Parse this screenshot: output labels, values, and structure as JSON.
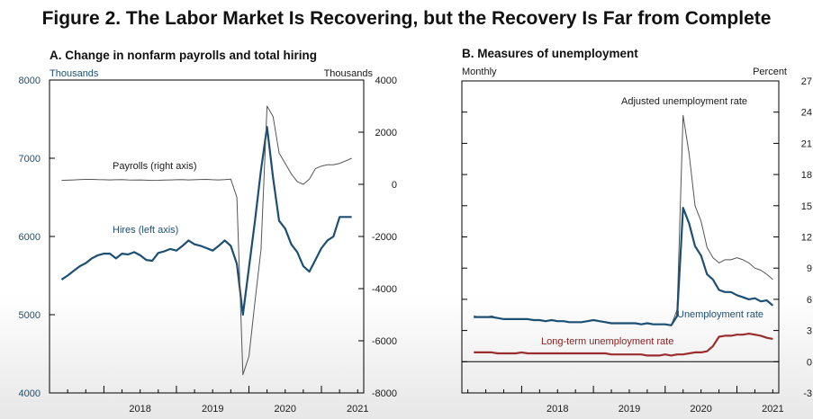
{
  "figure_title": "Figure 2. The Labor Market Is Recovering, but the Recovery Is Far from Complete",
  "colors": {
    "blue": "#1d4f73",
    "red": "#9b2d2d",
    "gray": "#555555",
    "black": "#000000"
  },
  "chart_data": [
    {
      "type": "line",
      "panel_title": "A. Change in nonfarm payrolls and total hiring",
      "left_unit": "Thousands",
      "right_unit": "Thousands",
      "year_labels": [
        "2018",
        "2019",
        "2020",
        "2021"
      ],
      "left_axis": {
        "ylim": [
          4000,
          8000
        ],
        "ticks": [
          "4000",
          "5000",
          "6000",
          "7000",
          "8000"
        ]
      },
      "right_axis": {
        "ylim": [
          -8000,
          4000
        ],
        "ticks": [
          "-8000",
          "-6000",
          "-4000",
          "-2000",
          "0",
          "2000",
          "4000"
        ]
      },
      "x_start": "2017-04",
      "x_end": "2021-08",
      "series": [
        {
          "name": "Hires (left axis)",
          "axis": "left",
          "color": "#1d4f73",
          "x": [
            "2017-06",
            "2017-07",
            "2017-08",
            "2017-09",
            "2017-10",
            "2017-11",
            "2017-12",
            "2018-01",
            "2018-02",
            "2018-03",
            "2018-04",
            "2018-05",
            "2018-06",
            "2018-07",
            "2018-08",
            "2018-09",
            "2018-10",
            "2018-11",
            "2018-12",
            "2019-01",
            "2019-02",
            "2019-03",
            "2019-04",
            "2019-05",
            "2019-06",
            "2019-07",
            "2019-08",
            "2019-09",
            "2019-10",
            "2019-11",
            "2019-12",
            "2020-01",
            "2020-02",
            "2020-03",
            "2020-04",
            "2020-05",
            "2020-06",
            "2020-07",
            "2020-08",
            "2020-09",
            "2020-10",
            "2020-11",
            "2020-12",
            "2021-01",
            "2021-02",
            "2021-03",
            "2021-04",
            "2021-05",
            "2021-06"
          ],
          "values": [
            5450,
            5500,
            5560,
            5620,
            5660,
            5720,
            5760,
            5780,
            5780,
            5720,
            5780,
            5770,
            5800,
            5760,
            5700,
            5690,
            5790,
            5810,
            5840,
            5820,
            5880,
            5950,
            5900,
            5880,
            5850,
            5820,
            5880,
            5950,
            5880,
            5650,
            5000,
            5600,
            6200,
            6850,
            7400,
            6750,
            6200,
            6100,
            5900,
            5800,
            5620,
            5550,
            5700,
            5850,
            5950,
            6000,
            6250,
            6250,
            6250
          ]
        },
        {
          "name": "Payrolls (right axis)",
          "axis": "right",
          "color": "#555555",
          "x": [
            "2017-06",
            "2017-07",
            "2017-08",
            "2017-09",
            "2017-10",
            "2017-11",
            "2017-12",
            "2018-01",
            "2018-02",
            "2018-03",
            "2018-04",
            "2018-05",
            "2018-06",
            "2018-07",
            "2018-08",
            "2018-09",
            "2018-10",
            "2018-11",
            "2018-12",
            "2019-01",
            "2019-02",
            "2019-03",
            "2019-04",
            "2019-05",
            "2019-06",
            "2019-07",
            "2019-08",
            "2019-09",
            "2019-10",
            "2019-11",
            "2019-12",
            "2020-01",
            "2020-02",
            "2020-03",
            "2020-04",
            "2020-05",
            "2020-06",
            "2020-07",
            "2020-08",
            "2020-09",
            "2020-10",
            "2020-11",
            "2020-12",
            "2021-01",
            "2021-02",
            "2021-03",
            "2021-04",
            "2021-05",
            "2021-06"
          ],
          "values": [
            150,
            160,
            170,
            180,
            190,
            190,
            180,
            175,
            170,
            175,
            180,
            170,
            165,
            170,
            160,
            150,
            155,
            165,
            170,
            175,
            180,
            170,
            175,
            185,
            190,
            175,
            170,
            180,
            200,
            -500,
            -7300,
            -6600,
            -4500,
            -2500,
            3000,
            2600,
            1200,
            800,
            400,
            100,
            0,
            200,
            600,
            700,
            750,
            750,
            800,
            900,
            1000
          ]
        }
      ],
      "annotations": [
        "Payrolls (right axis)",
        "Hires (left axis)"
      ]
    },
    {
      "type": "line",
      "panel_title": "B. Measures of unemployment",
      "left_unit": "Monthly",
      "right_unit": "Percent",
      "year_labels": [
        "2018",
        "2019",
        "2020",
        "2021"
      ],
      "right_axis": {
        "ylim": [
          -3,
          27
        ],
        "ticks": [
          "-3",
          "0",
          "3",
          "6",
          "9",
          "12",
          "15",
          "18",
          "21",
          "24",
          "27"
        ]
      },
      "x_start": "2017-03",
      "x_end": "2021-08",
      "series": [
        {
          "name": "Adjusted unemployment rate",
          "color": "#555555",
          "x": [
            "2017-05",
            "2017-06",
            "2017-07",
            "2017-08",
            "2017-09",
            "2017-10",
            "2017-11",
            "2017-12",
            "2018-01",
            "2018-02",
            "2018-03",
            "2018-04",
            "2018-05",
            "2018-06",
            "2018-07",
            "2018-08",
            "2018-09",
            "2018-10",
            "2018-11",
            "2018-12",
            "2019-01",
            "2019-02",
            "2019-03",
            "2019-04",
            "2019-05",
            "2019-06",
            "2019-07",
            "2019-08",
            "2019-09",
            "2019-10",
            "2019-11",
            "2019-12",
            "2020-01",
            "2020-02",
            "2020-03",
            "2020-04",
            "2020-05",
            "2020-06",
            "2020-07",
            "2020-08",
            "2020-09",
            "2020-10",
            "2020-11",
            "2020-12",
            "2021-01",
            "2021-02",
            "2021-03",
            "2021-04",
            "2021-05",
            "2021-06",
            "2021-07"
          ],
          "values": [
            4.4,
            4.3,
            4.3,
            4.4,
            4.2,
            4.1,
            4.1,
            4.1,
            4.1,
            4.1,
            4.0,
            4.0,
            3.9,
            4.0,
            3.9,
            3.9,
            3.8,
            3.8,
            3.8,
            3.9,
            4.0,
            3.9,
            3.8,
            3.7,
            3.7,
            3.7,
            3.7,
            3.7,
            3.6,
            3.7,
            3.6,
            3.6,
            3.6,
            3.5,
            5.0,
            23.7,
            20.0,
            15.0,
            13.5,
            11.0,
            10.0,
            9.5,
            9.8,
            9.8,
            10.0,
            9.8,
            9.5,
            9.0,
            8.8,
            8.4,
            7.9
          ]
        },
        {
          "name": "Unemployment rate",
          "color": "#1d4f73",
          "x": [
            "2017-05",
            "2017-06",
            "2017-07",
            "2017-08",
            "2017-09",
            "2017-10",
            "2017-11",
            "2017-12",
            "2018-01",
            "2018-02",
            "2018-03",
            "2018-04",
            "2018-05",
            "2018-06",
            "2018-07",
            "2018-08",
            "2018-09",
            "2018-10",
            "2018-11",
            "2018-12",
            "2019-01",
            "2019-02",
            "2019-03",
            "2019-04",
            "2019-05",
            "2019-06",
            "2019-07",
            "2019-08",
            "2019-09",
            "2019-10",
            "2019-11",
            "2019-12",
            "2020-01",
            "2020-02",
            "2020-03",
            "2020-04",
            "2020-05",
            "2020-06",
            "2020-07",
            "2020-08",
            "2020-09",
            "2020-10",
            "2020-11",
            "2020-12",
            "2021-01",
            "2021-02",
            "2021-03",
            "2021-04",
            "2021-05",
            "2021-06",
            "2021-07"
          ],
          "values": [
            4.3,
            4.3,
            4.3,
            4.3,
            4.2,
            4.1,
            4.1,
            4.1,
            4.1,
            4.1,
            4.0,
            4.0,
            3.9,
            4.0,
            3.9,
            3.9,
            3.8,
            3.8,
            3.8,
            3.9,
            4.0,
            3.9,
            3.8,
            3.7,
            3.7,
            3.7,
            3.7,
            3.7,
            3.6,
            3.7,
            3.6,
            3.6,
            3.6,
            3.5,
            4.4,
            14.8,
            13.3,
            11.1,
            10.2,
            8.4,
            7.9,
            6.9,
            6.7,
            6.7,
            6.4,
            6.2,
            6.0,
            6.1,
            5.8,
            5.9,
            5.4
          ]
        },
        {
          "name": "Long-term unemployment rate",
          "color": "#9b2d2d",
          "x": [
            "2017-05",
            "2017-06",
            "2017-07",
            "2017-08",
            "2017-09",
            "2017-10",
            "2017-11",
            "2017-12",
            "2018-01",
            "2018-02",
            "2018-03",
            "2018-04",
            "2018-05",
            "2018-06",
            "2018-07",
            "2018-08",
            "2018-09",
            "2018-10",
            "2018-11",
            "2018-12",
            "2019-01",
            "2019-02",
            "2019-03",
            "2019-04",
            "2019-05",
            "2019-06",
            "2019-07",
            "2019-08",
            "2019-09",
            "2019-10",
            "2019-11",
            "2019-12",
            "2020-01",
            "2020-02",
            "2020-03",
            "2020-04",
            "2020-05",
            "2020-06",
            "2020-07",
            "2020-08",
            "2020-09",
            "2020-10",
            "2020-11",
            "2020-12",
            "2021-01",
            "2021-02",
            "2021-03",
            "2021-04",
            "2021-05",
            "2021-06",
            "2021-07"
          ],
          "values": [
            0.9,
            0.9,
            0.9,
            0.9,
            0.8,
            0.8,
            0.8,
            0.8,
            0.9,
            0.8,
            0.8,
            0.8,
            0.8,
            0.8,
            0.8,
            0.8,
            0.8,
            0.8,
            0.8,
            0.8,
            0.8,
            0.8,
            0.8,
            0.7,
            0.7,
            0.7,
            0.7,
            0.7,
            0.7,
            0.6,
            0.6,
            0.6,
            0.7,
            0.6,
            0.7,
            0.7,
            0.8,
            0.9,
            0.9,
            1.0,
            1.5,
            2.4,
            2.5,
            2.5,
            2.6,
            2.6,
            2.7,
            2.6,
            2.5,
            2.3,
            2.2
          ]
        }
      ],
      "annotations": [
        "Adjusted unemployment rate",
        "Unemployment rate",
        "Long-term unemployment rate"
      ]
    }
  ]
}
